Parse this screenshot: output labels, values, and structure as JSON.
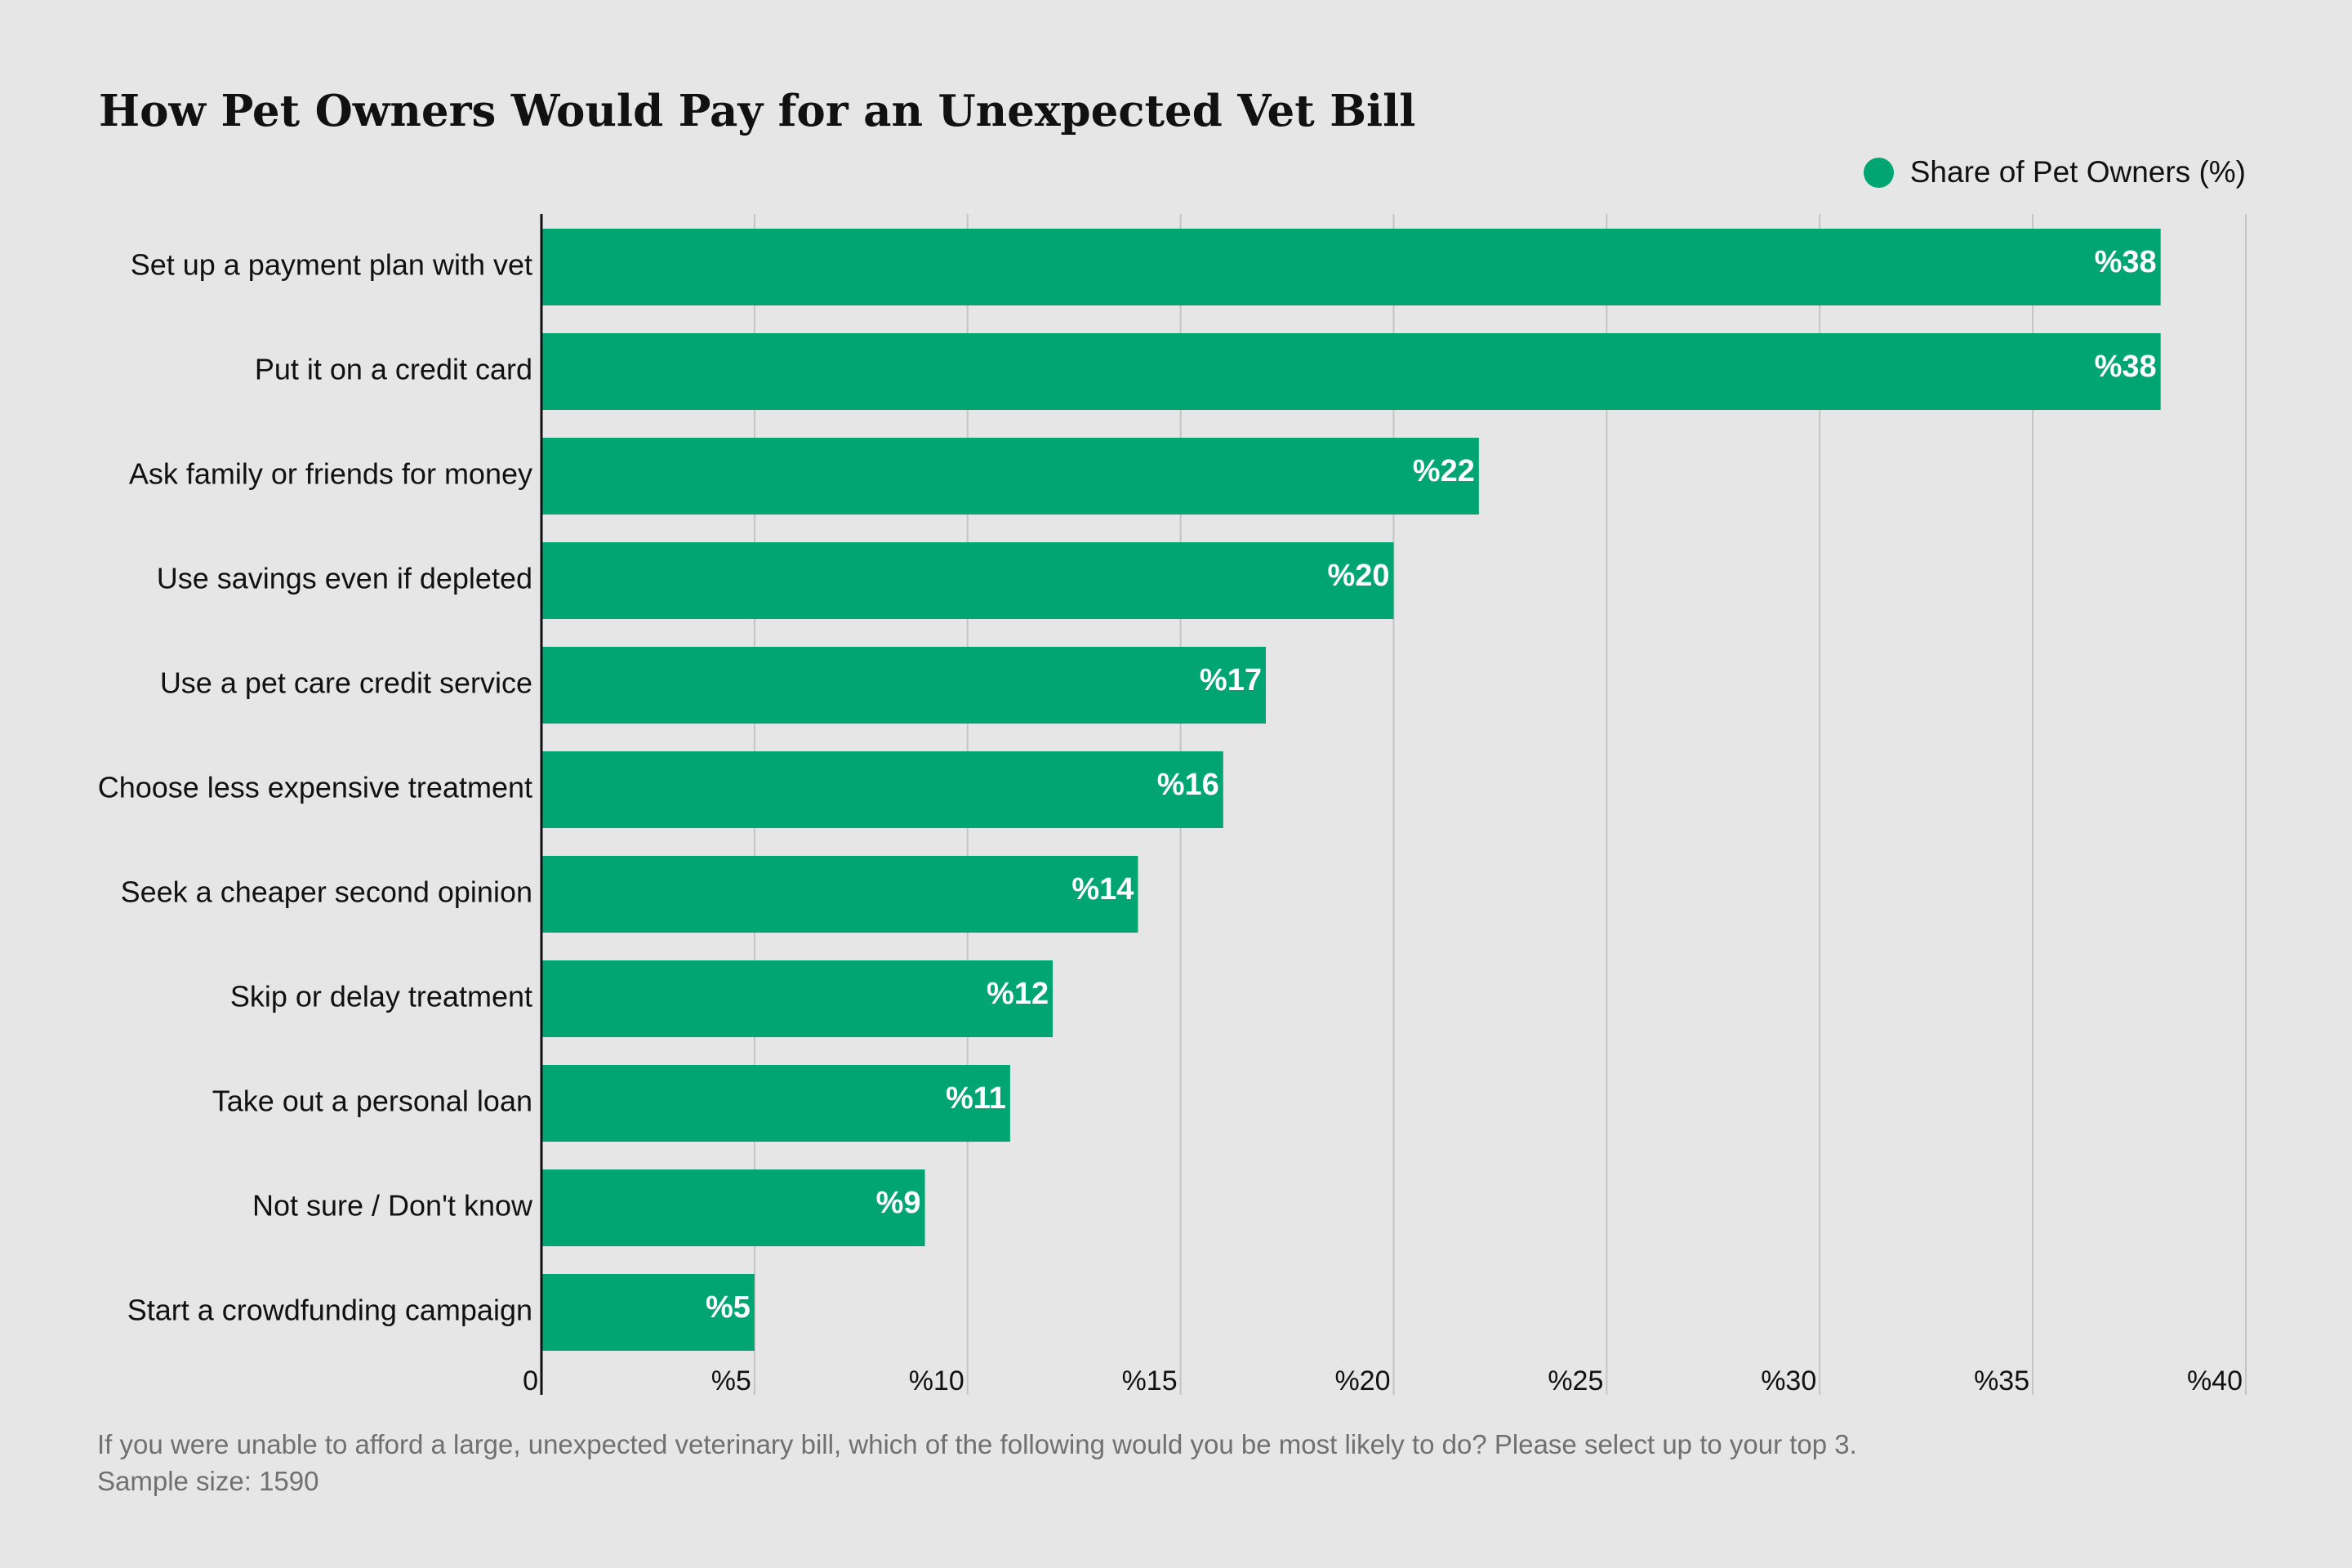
{
  "chart_data": {
    "type": "bar",
    "orientation": "horizontal",
    "title": "How Pet Owners Would Pay for an Unexpected Vet Bill",
    "legend_position": "top-right",
    "grid": true,
    "series": [
      {
        "name": "Share of Pet Owners (%)",
        "color": "#00a572",
        "values": [
          38,
          38,
          22,
          20,
          17,
          16,
          14,
          12,
          11,
          9,
          5
        ],
        "data_labels": [
          "%38",
          "%38",
          "%22",
          "%20",
          "%17",
          "%16",
          "%14",
          "%12",
          "%11",
          "%9",
          "%5"
        ]
      }
    ],
    "categories": [
      "Set up a payment plan with vet",
      "Put it on a credit card",
      "Ask family or friends for money",
      "Use savings even if depleted",
      "Use a pet care credit service",
      "Choose less expensive treatment",
      "Seek a cheaper second opinion",
      "Skip or delay treatment",
      "Take out a personal loan",
      "Not sure / Don't know",
      "Start a crowdfunding campaign"
    ],
    "xlim": [
      0,
      40
    ],
    "xticks": [
      0,
      5,
      10,
      15,
      20,
      25,
      30,
      35,
      40
    ],
    "xtick_labels": [
      "0",
      "%5",
      "%10",
      "%15",
      "%20",
      "%25",
      "%30",
      "%35",
      "%40"
    ],
    "xlabel": "",
    "ylabel": ""
  },
  "footnote": {
    "question": "If you were unable to afford a large, unexpected veterinary bill, which of the following would you be most likely to do? Please select up to your top 3.",
    "sample": "Sample size: 1590"
  },
  "colors": {
    "background": "#e6e6e6",
    "bar": "#00a572",
    "gridline": "#c4c4c4",
    "axis": "#111111",
    "text": "#111111",
    "footnote": "#707070",
    "data_label": "#ffffff"
  }
}
